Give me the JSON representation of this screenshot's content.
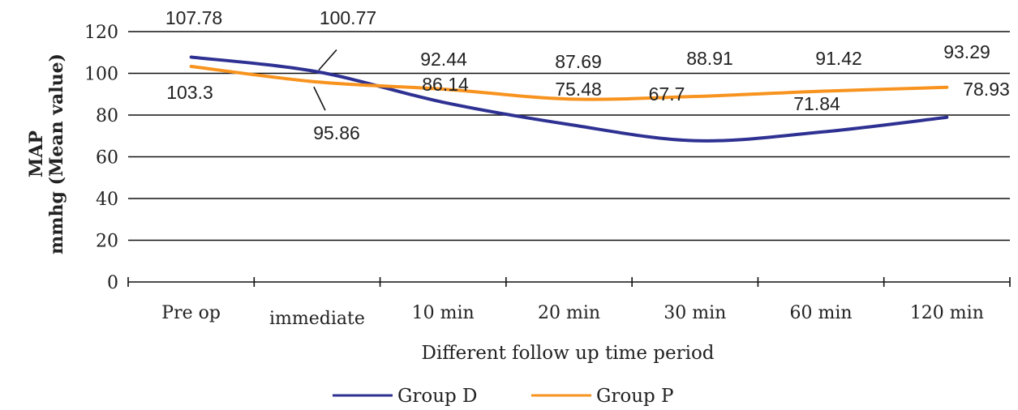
{
  "chart_data": {
    "type": "line",
    "categories": [
      "Pre op",
      "immediate",
      "10 min",
      "20 min",
      "30 min",
      "60 min",
      "120 min"
    ],
    "xlabel": "Different follow up time period",
    "ylabel": [
      "MAP",
      "mmhg (Mean value)"
    ],
    "ylim": [
      0,
      120
    ],
    "yticks": [
      0,
      20,
      40,
      60,
      80,
      100,
      120
    ],
    "grid": true,
    "legend_position": "bottom",
    "series": [
      {
        "name": "Group D",
        "color": "#2E3192",
        "values": [
          107.78,
          100.77,
          86.14,
          75.48,
          67.7,
          71.84,
          78.93
        ],
        "labels": [
          "107.78",
          "100.77",
          "86.14",
          "75.48",
          "67.7",
          "71.84",
          "78.93"
        ]
      },
      {
        "name": "Group P",
        "color": "#F7931E",
        "values": [
          103.3,
          95.86,
          92.44,
          87.69,
          88.91,
          91.42,
          93.29
        ],
        "labels": [
          "103.3",
          "95.86",
          "92.44",
          "87.69",
          "88.91",
          "91.42",
          "93.29"
        ]
      }
    ]
  }
}
